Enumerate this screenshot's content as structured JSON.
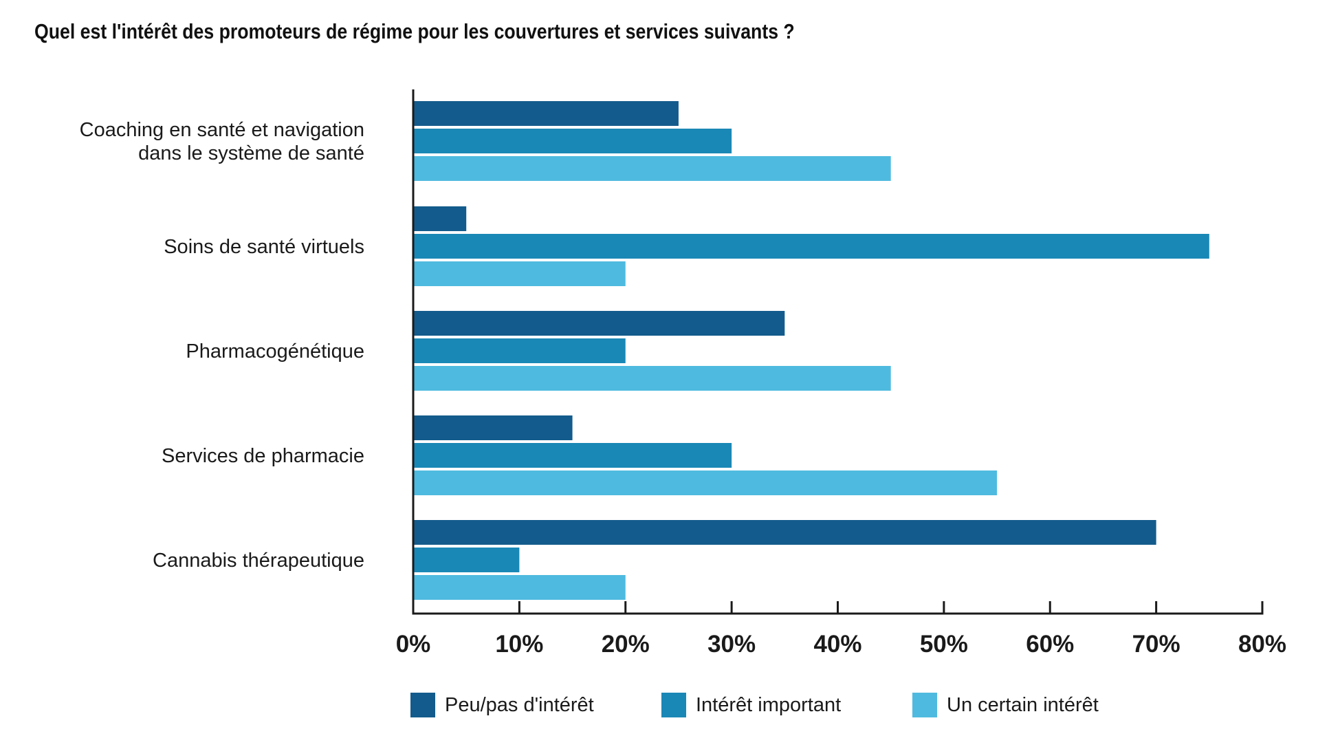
{
  "title": "Quel est l'intérêt des promoteurs de régime pour les couvertures et services suivants ?",
  "colors": {
    "peu": "#135b8c",
    "important": "#1a88b6",
    "certain": "#4fbadf",
    "axis": "#1a1a1a"
  },
  "legend": [
    {
      "label": "Peu/pas d'intérêt",
      "color": "#135b8c"
    },
    {
      "label": "Intérêt important",
      "color": "#1a88b6"
    },
    {
      "label": "Un certain intérêt",
      "color": "#4fbadf"
    }
  ],
  "chart_data": {
    "type": "bar",
    "orientation": "horizontal",
    "title": "Quel est l'intérêt des promoteurs de régime pour les couvertures et services suivants ?",
    "xlabel": "",
    "ylabel": "",
    "categories": [
      [
        "Coaching en santé et navigation",
        "dans le système de santé"
      ],
      [
        "Soins de santé virtuels"
      ],
      [
        "Pharmacogénétique"
      ],
      [
        "Services de pharmacie"
      ],
      [
        "Cannabis thérapeutique"
      ]
    ],
    "series": [
      {
        "name": "Peu/pas d'intérêt",
        "color": "#135b8c",
        "values": [
          25,
          5,
          35,
          15,
          70
        ]
      },
      {
        "name": "Intérêt important",
        "color": "#1a88b6",
        "values": [
          30,
          75,
          20,
          30,
          10
        ]
      },
      {
        "name": "Un certain intérêt",
        "color": "#4fbadf",
        "values": [
          45,
          20,
          45,
          55,
          20
        ]
      }
    ],
    "xlim": [
      0,
      80
    ],
    "xticks": [
      0,
      10,
      20,
      30,
      40,
      50,
      60,
      70,
      80
    ],
    "xtick_labels": [
      "0%",
      "10%",
      "20%",
      "30%",
      "40%",
      "50%",
      "60%",
      "70%",
      "80%"
    ],
    "grid": false,
    "legend_position": "bottom"
  }
}
